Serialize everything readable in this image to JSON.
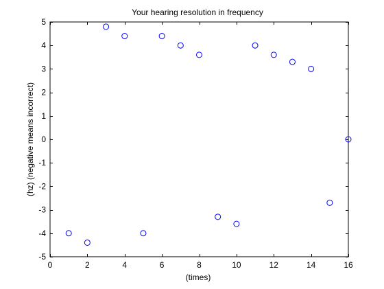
{
  "chart_data": {
    "type": "scatter",
    "title": "Your hearing resolution in frequency",
    "xlabel": "(times)",
    "ylabel": "(hz) (negative means incorrect)",
    "xlim": [
      0,
      16
    ],
    "ylim": [
      -5,
      5
    ],
    "xticks": [
      0,
      2,
      4,
      6,
      8,
      10,
      12,
      14,
      16
    ],
    "yticks": [
      -5,
      -4,
      -3,
      -2,
      -1,
      0,
      1,
      2,
      3,
      4,
      5
    ],
    "grid": false,
    "marker": "circle-open",
    "series": [
      {
        "color": "#0000ff",
        "points": [
          {
            "x": 1,
            "y": -4.0
          },
          {
            "x": 2,
            "y": -4.4
          },
          {
            "x": 3,
            "y": 4.8
          },
          {
            "x": 4,
            "y": 4.4
          },
          {
            "x": 5,
            "y": -4.0
          },
          {
            "x": 6,
            "y": 4.4
          },
          {
            "x": 7,
            "y": 4.0
          },
          {
            "x": 8,
            "y": 3.6
          },
          {
            "x": 9,
            "y": -3.3
          },
          {
            "x": 10,
            "y": -3.6
          },
          {
            "x": 11,
            "y": 4.0
          },
          {
            "x": 12,
            "y": 3.6
          },
          {
            "x": 13,
            "y": 3.3
          },
          {
            "x": 14,
            "y": 3.0
          },
          {
            "x": 15,
            "y": -2.7
          },
          {
            "x": 16,
            "y": 0.0
          }
        ]
      }
    ]
  }
}
